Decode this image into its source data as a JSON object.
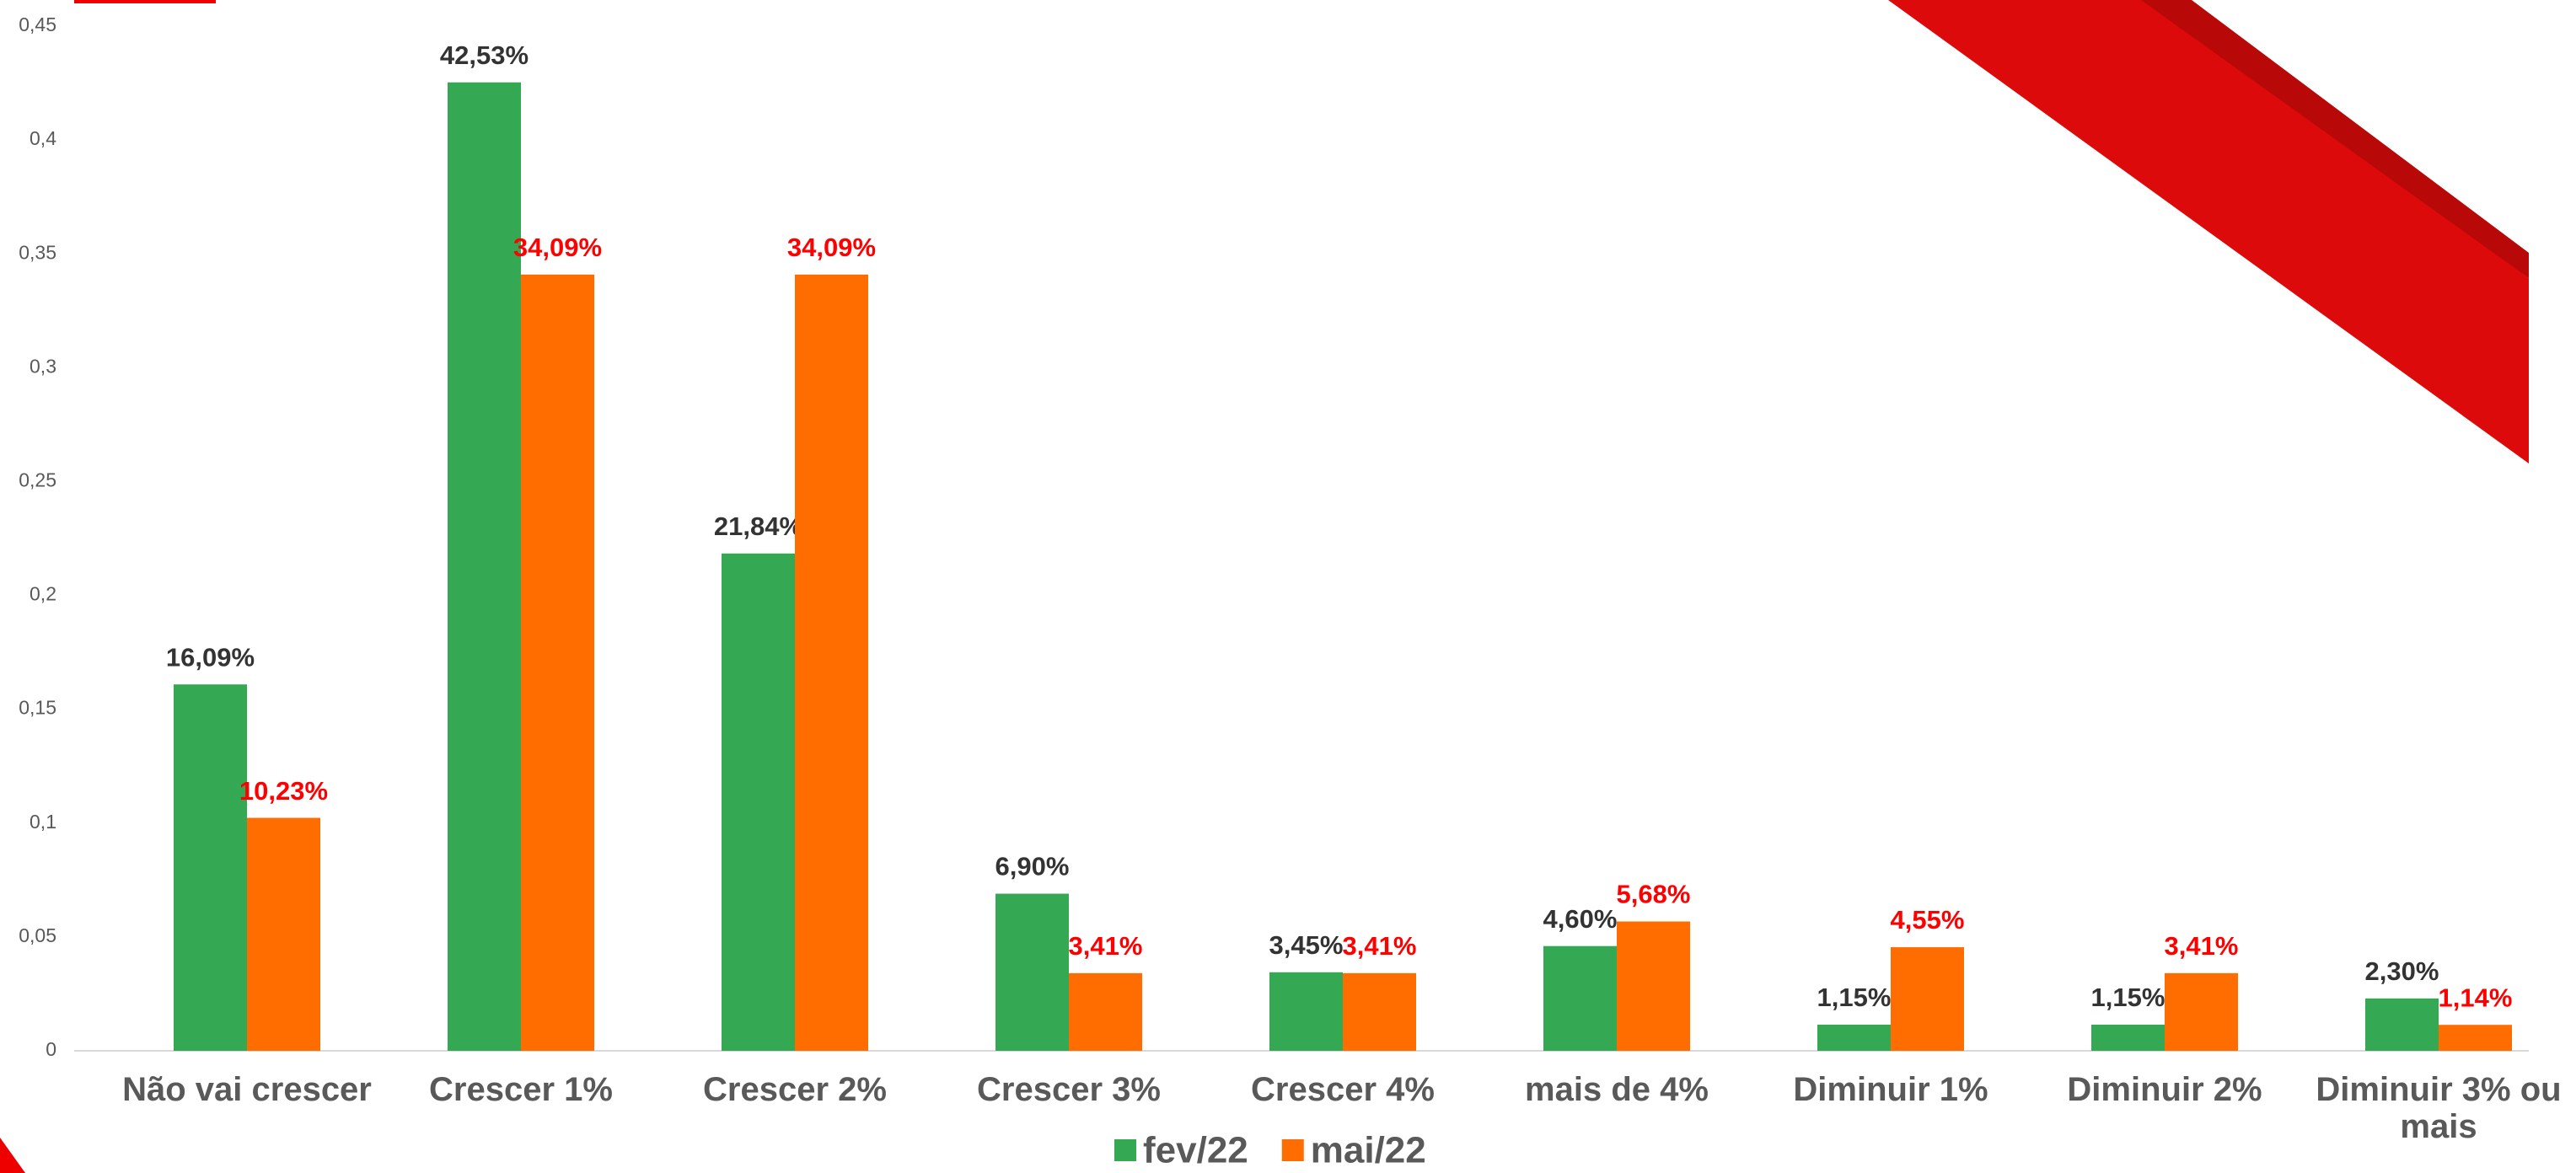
{
  "chart_data": {
    "type": "bar",
    "categories": [
      "Não vai crescer",
      "Crescer 1%",
      "Crescer 2%",
      "Crescer 3%",
      "Crescer 4%",
      "mais de 4%",
      "Diminuir 1%",
      "Diminuir 2%",
      "Diminuir 3% ou mais"
    ],
    "series": [
      {
        "name": "fev/22",
        "color": "#34a853",
        "label_color": "#333333",
        "values": [
          0.1609,
          0.4253,
          0.2184,
          0.069,
          0.0345,
          0.046,
          0.0115,
          0.0115,
          0.023
        ],
        "value_labels": [
          "16,09%",
          "42,53%",
          "21,84%",
          "6,90%",
          "3,45%",
          "4,60%",
          "1,15%",
          "1,15%",
          "2,30%"
        ]
      },
      {
        "name": "mai/22",
        "color": "#ff6d01",
        "label_color": "#ff0000",
        "values": [
          0.1023,
          0.3409,
          0.3409,
          0.0341,
          0.0341,
          0.0568,
          0.0455,
          0.0341,
          0.0114
        ],
        "value_labels": [
          "10,23%",
          "34,09%",
          "34,09%",
          "3,41%",
          "3,41%",
          "5,68%",
          "4,55%",
          "3,41%",
          "1,14%"
        ]
      }
    ],
    "ylim": [
      0,
      0.45
    ],
    "yticks": [
      0,
      {
        "value": 0.05,
        "label": "0,05"
      },
      {
        "value": 0.1,
        "label": "0,1"
      },
      {
        "value": 0.15,
        "label": "0,15"
      },
      {
        "value": 0.2,
        "label": "0,2"
      },
      {
        "value": 0.25,
        "label": "0,25"
      },
      {
        "value": 0.3,
        "label": "0,3"
      },
      {
        "value": 0.35,
        "label": "0,35"
      },
      {
        "value": 0.4,
        "label": "0,4"
      },
      {
        "value": 0.45,
        "label": "0,45"
      }
    ],
    "legend": "bottom"
  }
}
